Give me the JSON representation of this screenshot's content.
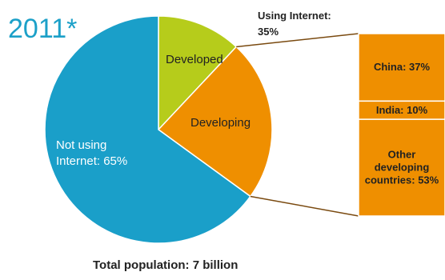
{
  "chart_data": {
    "type": "pie",
    "title": "2011*",
    "slices": [
      {
        "label": "Not using\nInternet:  65%",
        "value": 65,
        "color": "#1a9fc9"
      },
      {
        "label": "Developed",
        "value": 12,
        "color": "#b6cc1b"
      },
      {
        "label": "Developing",
        "value": 23,
        "color": "#ef8f00"
      }
    ],
    "annotation": "Using Internet:\n35%",
    "breakdown": {
      "of": "Developing",
      "items": [
        {
          "label": "China: 37%",
          "value": 37
        },
        {
          "label": "India: 10%",
          "value": 10
        },
        {
          "label": "Other\ndeveloping\ncountries: 53%",
          "value": 53
        }
      ],
      "color": "#ef8f00"
    },
    "footer": "Total population: 7 billion"
  }
}
